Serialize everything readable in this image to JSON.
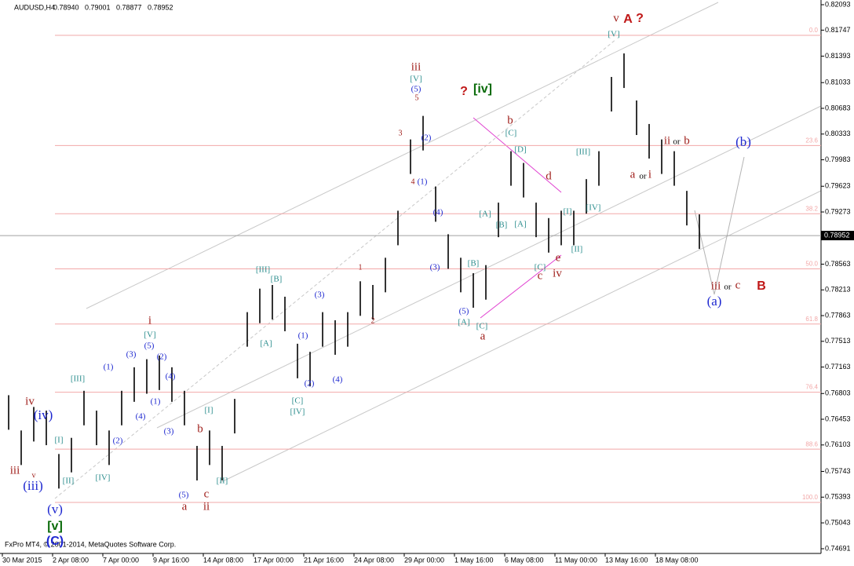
{
  "chart_data": {
    "type": "hl-bar",
    "header": {
      "symbol": "AUDUSD,H4",
      "open": "0.78940",
      "high": "0.79001",
      "low": "0.78877",
      "close": "0.78952"
    },
    "footer": "FxPro MT4, © 2001-2014, MetaQuotes Software Corp.",
    "color": "#000000",
    "ylim": [
      0.74627,
      0.82157
    ],
    "yticks": [
      0.82093,
      0.81747,
      0.81393,
      0.81033,
      0.80683,
      0.80333,
      0.79983,
      0.79623,
      0.79273,
      0.78563,
      0.78213,
      0.77863,
      0.77513,
      0.77163,
      0.76803,
      0.76453,
      0.76103,
      0.75743,
      0.75393,
      0.75043,
      0.74691
    ],
    "current_price": 0.78952,
    "x_labels": [
      "30 Mar 2015",
      "2 Apr 08:00",
      "7 Apr 00:00",
      "9 Apr 16:00",
      "14 Apr 08:00",
      "17 Apr 00:00",
      "21 Apr 16:00",
      "24 Apr 08:00",
      "29 Apr 00:00",
      "1 May 16:00",
      "6 May 08:00",
      "11 May 00:00",
      "13 May 16:00",
      "18 May 08:00"
    ],
    "high": [
      0.7678,
      0.763,
      0.7662,
      0.7657,
      0.7598,
      0.762,
      0.7684,
      0.7657,
      0.763,
      0.7684,
      0.7716,
      0.7727,
      0.7732,
      0.7716,
      0.7684,
      0.7609,
      0.763,
      0.7609,
      0.7673,
      0.7791,
      0.7823,
      0.7828,
      0.7812,
      0.7748,
      0.7737,
      0.7791,
      0.778,
      0.7791,
      0.7833,
      0.7828,
      0.7865,
      0.7929,
      0.8026,
      0.8058,
      0.7962,
      0.7897,
      0.7865,
      0.7844,
      0.7855,
      0.794,
      0.801,
      0.7994,
      0.794,
      0.7919,
      0.7929,
      0.7929,
      0.7972,
      0.801,
      0.8111,
      0.8143,
      0.8079,
      0.8047,
      0.8026,
      0.801,
      0.7956,
      0.7924
    ],
    "low": [
      0.7631,
      0.7583,
      0.7615,
      0.761,
      0.7551,
      0.7573,
      0.7637,
      0.761,
      0.7583,
      0.7637,
      0.7669,
      0.768,
      0.7685,
      0.7669,
      0.7637,
      0.7562,
      0.7583,
      0.7562,
      0.7626,
      0.7744,
      0.7776,
      0.7781,
      0.7765,
      0.7701,
      0.769,
      0.7744,
      0.7733,
      0.7744,
      0.7786,
      0.7781,
      0.7818,
      0.7882,
      0.7979,
      0.8011,
      0.7914,
      0.785,
      0.7818,
      0.7797,
      0.7808,
      0.7893,
      0.7963,
      0.7947,
      0.7893,
      0.7872,
      0.7882,
      0.7882,
      0.7925,
      0.7963,
      0.8064,
      0.8096,
      0.8032,
      0.8,
      0.7979,
      0.7963,
      0.7909,
      0.7877
    ],
    "fib_levels": [
      {
        "value": 0,
        "label": "0.0"
      },
      23.6,
      38.2,
      {
        "value": 50,
        "label": "50.0"
      },
      61.8,
      76.4,
      88.6,
      {
        "value": 100,
        "label": "100.0"
      }
    ],
    "fib_color": "#f2a8a8",
    "annotations": [
      "iv",
      "(iv)",
      "iii",
      "v",
      "(iii)",
      "(v)",
      "[v]",
      "(C)",
      "[III]",
      "[I]",
      "[II]",
      "[IV]",
      "(1)",
      "(2)",
      "(3)",
      "(4)",
      "i",
      "[V]",
      "(5)",
      "(2)",
      "(4)",
      "(1)",
      "(3)",
      "b",
      "[I]",
      "(5)",
      "a",
      "c",
      "ii",
      "[II]",
      "[III]",
      "[B]",
      "[A]",
      "(1)",
      "(3)",
      "(2)",
      "(4)",
      "[C]",
      "[IV]",
      "1",
      "2",
      "3",
      "4",
      "5",
      "iii",
      "[V]",
      "(5)",
      "(2)",
      "(1)",
      "(4)",
      "(3)",
      "(5)",
      "[A]",
      "[C]",
      "a",
      "[B]",
      "[A]",
      "[B]",
      "[A]",
      "?",
      "[iv]",
      "b",
      "[C]",
      "[D]",
      "d",
      "[C]",
      "c",
      "e",
      "iv",
      "[I]",
      "[II]",
      "[III]",
      "[IV]",
      "v",
      "A",
      "?",
      "[V]",
      "ii",
      "or",
      "b",
      "a",
      "or",
      "i",
      "(b)",
      "iii",
      "or",
      "c",
      "(a)",
      "B"
    ]
  }
}
